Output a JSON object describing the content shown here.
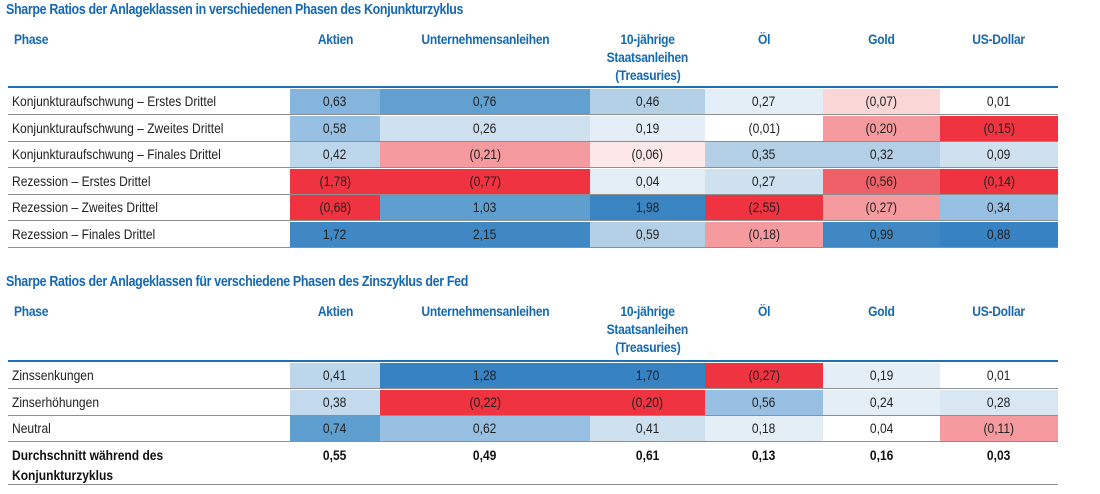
{
  "colors": {
    "header_blue": "#1569b3",
    "strong_red": "#ef3340",
    "mid_red": "#f06068",
    "light_red": "#f59a9e",
    "pale_red": "#fbd6d7",
    "faint_red": "#fde8e9",
    "strong_blue": "#3a84c2",
    "mid_blue": "#5e9fd0",
    "blue": "#97c0e2",
    "light_blue": "#b3d0e6",
    "pale_blue": "#cfe0ef",
    "faint_blue": "#e3eef7",
    "white": "#ffffff"
  },
  "columns": [
    "Phase",
    "Aktien",
    "Unternehmensanleihen",
    "10-jährige Staatsanleihen (Treasuries)",
    "Öl",
    "Gold",
    "US-Dollar"
  ],
  "table1": {
    "title": "Sharpe Ratios der Anlageklassen in verschiedenen Phasen des Konjunkturzyklus",
    "headers": {
      "phase": "Phase",
      "aktien": "Aktien",
      "corp": "Unternehmensanleihen",
      "treasuries_l1": "10-jährige",
      "treasuries_l2": "Staatsanleihen",
      "treasuries_l3": "(Treasuries)",
      "oil": "Öl",
      "gold": "Gold",
      "usd": "US-Dollar"
    },
    "rows": [
      {
        "label": "Konjunkturaufschwung – Erstes Drittel",
        "values": [
          "0,63",
          "0,76",
          "0,46",
          "0,27",
          "(0,07)",
          "0,01"
        ],
        "colors": [
          "#85b5dc",
          "#62a0d0",
          "#b3d0e6",
          "#e3eef7",
          "#fbd6d7",
          "#ffffff"
        ]
      },
      {
        "label": "Konjunkturaufschwung – Zweites Drittel",
        "values": [
          "0,58",
          "0,26",
          "0,19",
          "(0,01)",
          "(0,20)",
          "(0,15)"
        ],
        "colors": [
          "#97c0e2",
          "#cfe0ef",
          "#e3eef7",
          "#ffffff",
          "#f59a9e",
          "#ef3340"
        ]
      },
      {
        "label": "Konjunkturaufschwung – Finales Drittel",
        "values": [
          "0,42",
          "(0,21)",
          "(0,06)",
          "0,35",
          "0,32",
          "0,09"
        ],
        "colors": [
          "#bcd6ec",
          "#f59a9e",
          "#fde8e9",
          "#b3d0e6",
          "#b3d0e6",
          "#cfe0ef"
        ]
      },
      {
        "label": "Rezession – Erstes Drittel",
        "values": [
          "(1,78)",
          "(0,77)",
          "0,04",
          "0,27",
          "(0,56)",
          "(0,14)"
        ],
        "colors": [
          "#ef3340",
          "#ef3340",
          "#e3eef7",
          "#cfe0ef",
          "#f06068",
          "#ef3340"
        ]
      },
      {
        "label": "Rezession – Zweites Drittel",
        "values": [
          "(0,68)",
          "1,03",
          "1,98",
          "(2,55)",
          "(0,27)",
          "0,34"
        ],
        "colors": [
          "#ef3340",
          "#5e9fd0",
          "#3a84c2",
          "#ef3340",
          "#f59a9e",
          "#97c0e2"
        ]
      },
      {
        "label": "Rezession – Finales Drittel",
        "values": [
          "1,72",
          "2,15",
          "0,59",
          "(0,18)",
          "0,99",
          "0,88"
        ],
        "colors": [
          "#3f88c4",
          "#3f88c4",
          "#b3d0e6",
          "#f59a9e",
          "#3f88c4",
          "#3682c2"
        ]
      }
    ]
  },
  "table2": {
    "title": "Sharpe Ratios der Anlageklassen für verschiedene Phasen des Zinszyklus der Fed",
    "headers": {
      "phase": "Phase",
      "aktien": "Aktien",
      "corp": "Unternehmensanleihen",
      "treasuries_l1": "10-jährige",
      "treasuries_l2": "Staatsanleihen",
      "treasuries_l3": "(Treasuries)",
      "oil": "Öl",
      "gold": "Gold",
      "usd": "US-Dollar"
    },
    "rows": [
      {
        "label": "Zinssenkungen",
        "values": [
          "0,41",
          "1,28",
          "1,70",
          "(0,27)",
          "0,19",
          "0,01"
        ],
        "colors": [
          "#bcd6ec",
          "#3682c2",
          "#3682c2",
          "#ef3340",
          "#e3eef7",
          "#ffffff"
        ]
      },
      {
        "label": "Zinserhöhungen",
        "values": [
          "0,38",
          "(0,22)",
          "(0,20)",
          "0,56",
          "0,24",
          "0,28"
        ],
        "colors": [
          "#c3d9ee",
          "#ef3340",
          "#ef3340",
          "#97c0e2",
          "#e3eef7",
          "#d9e7f3"
        ]
      },
      {
        "label": "Neutral",
        "values": [
          "0,74",
          "0,62",
          "0,41",
          "0,18",
          "0,04",
          "(0,11)"
        ],
        "colors": [
          "#5e9fd0",
          "#97c0e2",
          "#cfe0ef",
          "#e3eef7",
          "#ffffff",
          "#f59a9e"
        ]
      }
    ],
    "average": {
      "label": "Durchschnitt während des Konjunkturzyklus",
      "values": [
        "0,55",
        "0,49",
        "0,61",
        "0,13",
        "0,16",
        "0,03"
      ]
    }
  }
}
